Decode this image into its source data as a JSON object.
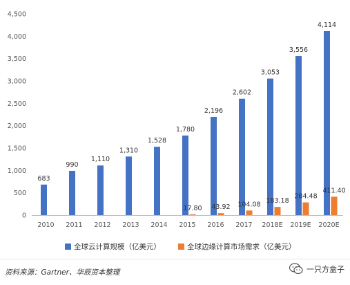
{
  "chart_data": {
    "type": "bar",
    "categories": [
      "2010",
      "2011",
      "2012",
      "2013",
      "2014",
      "2015",
      "2016",
      "2017",
      "2018E",
      "2019E",
      "2020E"
    ],
    "series": [
      {
        "name": "全球云计算规模（亿美元）",
        "color": "#4472C4",
        "values": [
          683,
          990,
          1110,
          1310,
          1528,
          1780,
          2196,
          2602,
          3053,
          3556,
          4114
        ],
        "labels": [
          "683",
          "990",
          "1,110",
          "1,310",
          "1,528",
          "1,780",
          "2,196",
          "2,602",
          "3,053",
          "3,556",
          "4,114"
        ]
      },
      {
        "name": "全球边缘计算市场需求（亿美元）",
        "color": "#ED7D31",
        "values": [
          null,
          null,
          null,
          null,
          null,
          17.8,
          43.92,
          104.08,
          183.18,
          284.48,
          411.4
        ],
        "labels": [
          "",
          "",
          "",
          "",
          "",
          "17.80",
          "43.92",
          "104.08",
          "183.18",
          "284.48",
          "411.40"
        ]
      }
    ],
    "ylim": [
      0,
      4500
    ],
    "yticks": [
      0,
      500,
      1000,
      1500,
      2000,
      2500,
      3000,
      3500,
      4000,
      4500
    ],
    "ytick_labels": [
      "0",
      "500",
      "1,000",
      "1,500",
      "2,000",
      "2,500",
      "3,000",
      "3,500",
      "4,000",
      "4,500"
    ],
    "grid": false,
    "legend_position": "bottom"
  },
  "footer": {
    "source": "资料来源：Gartner、华辰资本整理",
    "wechat_name": "一只方盒子"
  }
}
